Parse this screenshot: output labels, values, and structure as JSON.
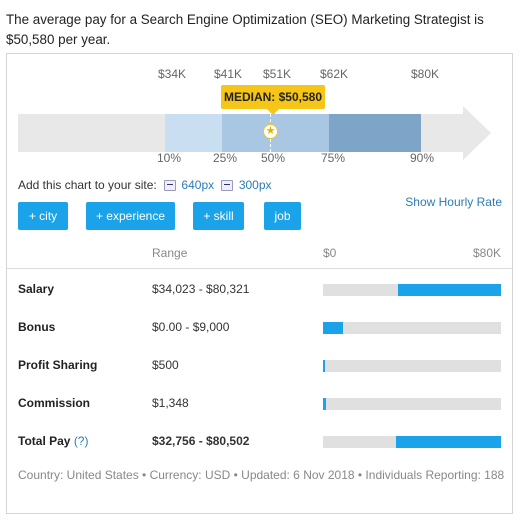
{
  "intro": "The average pay for a Search Engine Optimization (SEO) Marketing Strategist is $50,580 per year.",
  "chart": {
    "top_labels": [
      "$34K",
      "$41K",
      "$51K",
      "$62K",
      "$80K"
    ],
    "percentile_labels": [
      "10%",
      "25%",
      "50%",
      "75%",
      "90%"
    ],
    "median_label": "MEDIAN: $50,580",
    "colors": {
      "track": "#e8e8e8",
      "p10_25": "#c9def0",
      "p25_75": "#a9c7e3",
      "p75_90": "#7ea4c8",
      "badge": "#f5c518"
    }
  },
  "add_chart": {
    "text": "Add this chart to your site:",
    "small": "640px",
    "large": "300px"
  },
  "chips": [
    "+ city",
    "+ experience",
    "+ skill",
    "job"
  ],
  "show_hourly": "Show Hourly Rate",
  "table": {
    "headers": {
      "range": "Range",
      "min": "$0",
      "max": "$80K"
    },
    "rows": [
      {
        "label": "Salary",
        "range": "$34,023 - $80,321",
        "bar_start": 0.42,
        "bar_end": 1.0
      },
      {
        "label": "Bonus",
        "range": "$0.00 - $9,000",
        "bar_start": 0.0,
        "bar_end": 0.11
      },
      {
        "label": "Profit Sharing",
        "range": "$500",
        "bar_start": 0.0,
        "bar_end": 0.006
      },
      {
        "label": "Commission",
        "range": "$1,348",
        "bar_start": 0.0,
        "bar_end": 0.017
      },
      {
        "label": "Total Pay",
        "help": "(?)",
        "range": "$32,756 - $80,502",
        "bar_start": 0.41,
        "bar_end": 1.0
      }
    ]
  },
  "footer": "Country: United States • Currency: USD • Updated: 6 Nov 2018 • Individuals Reporting: 188",
  "accent": "#1aa3e8",
  "link_color": "#2b7bb9"
}
